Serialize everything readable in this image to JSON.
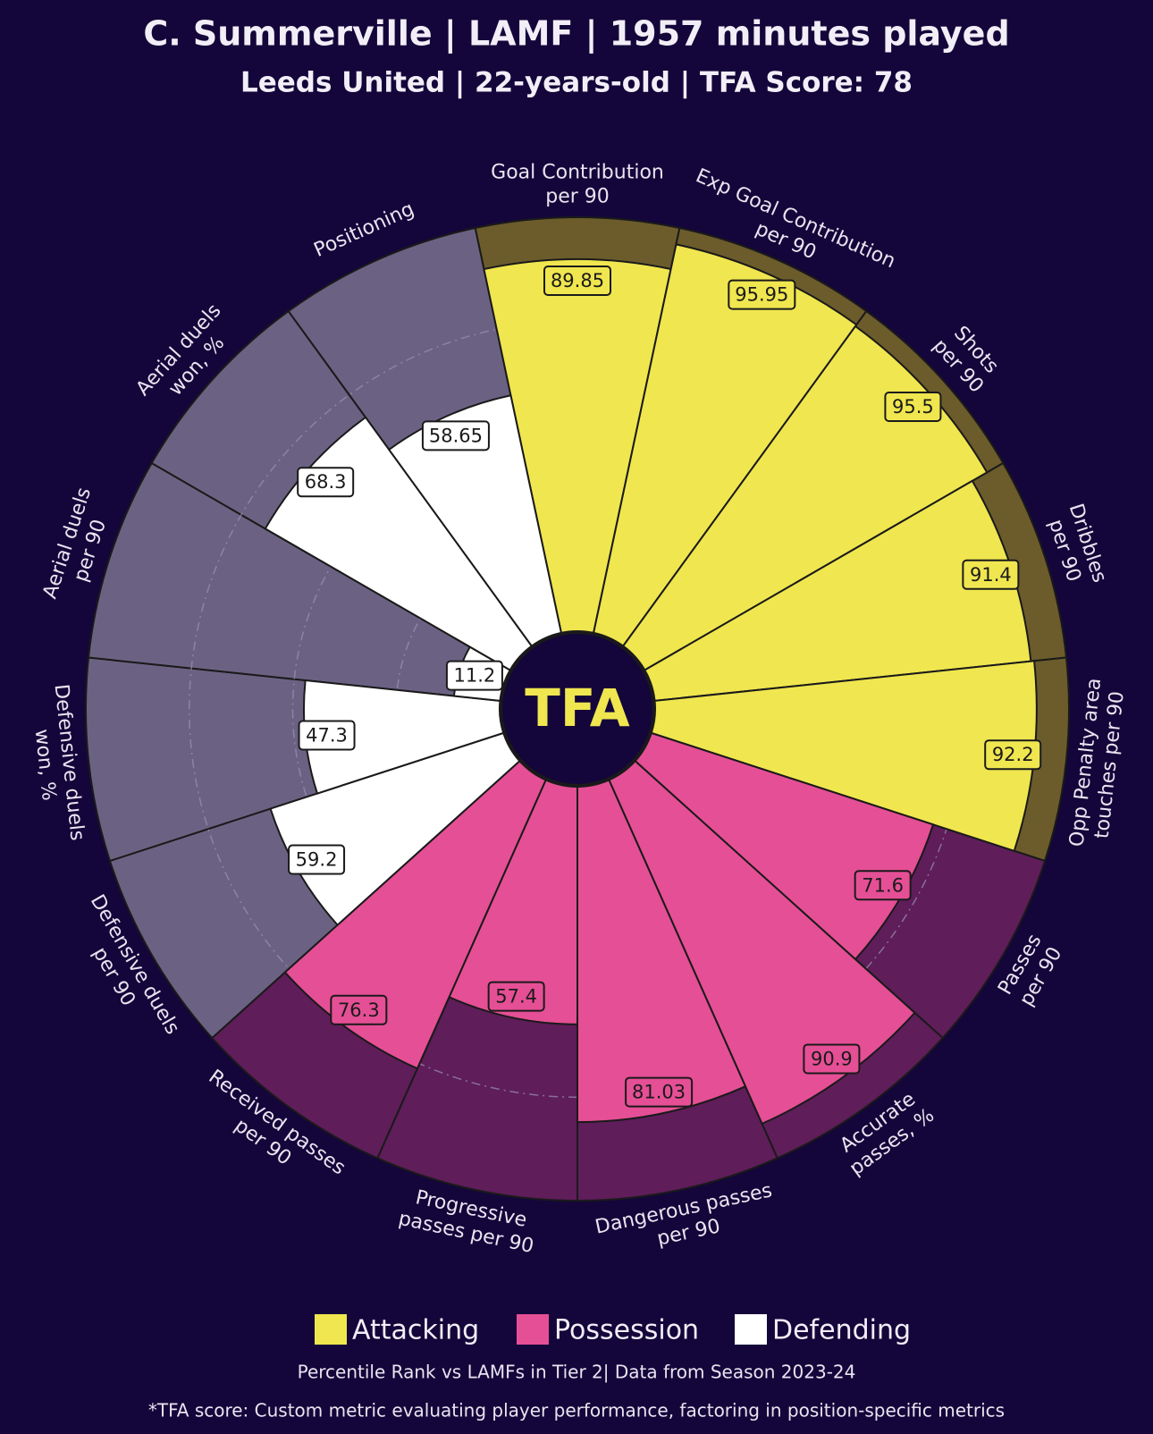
{
  "chart_data": {
    "type": "pizza",
    "title": "C. Summerville | LAMF | 1957 minutes played",
    "subtitle": "Leeds United | 22-years-old | TFA Score: 78",
    "logo": "TFA",
    "series": [
      {
        "name": "Attacking",
        "color": "#f0e64f",
        "background": "#6c5c2c",
        "categories": [
          "Goal Contribution\nper 90",
          "Exp Goal Contribution\nper 90",
          "Shots\nper 90",
          "Dribbles\nper 90",
          "Opp Penalty area\ntouches per 90"
        ],
        "values": [
          89.85,
          95.95,
          95.5,
          91.4,
          92.2
        ]
      },
      {
        "name": "Possession",
        "color": "#e54f95",
        "background": "#5f1d5a",
        "categories": [
          "Passes\nper 90",
          "Accurate\npasses, %",
          "Dangerous passes\nper 90",
          "Progressive\npasses per 90",
          "Received passes\nper 90"
        ],
        "values": [
          71.6,
          90.9,
          81.03,
          57.4,
          76.3
        ]
      },
      {
        "name": "Defending",
        "color": "#ffffff",
        "background": "#6b6283",
        "categories": [
          "Defensive duels\nper 90",
          "Defensive duels\nwon, %",
          "Aerial duels\nper 90",
          "Aerial duels\nwon, %",
          "Positioning"
        ],
        "values": [
          59.2,
          47.3,
          11.2,
          68.3,
          58.65
        ]
      }
    ],
    "ylim": [
      0,
      100
    ],
    "grid": true,
    "notes": [
      "Percentile Rank vs LAMFs in Tier 2| Data from Season 2023-24",
      "*TFA score: Custom metric evaluating player performance, factoring in position-specific metrics"
    ]
  }
}
